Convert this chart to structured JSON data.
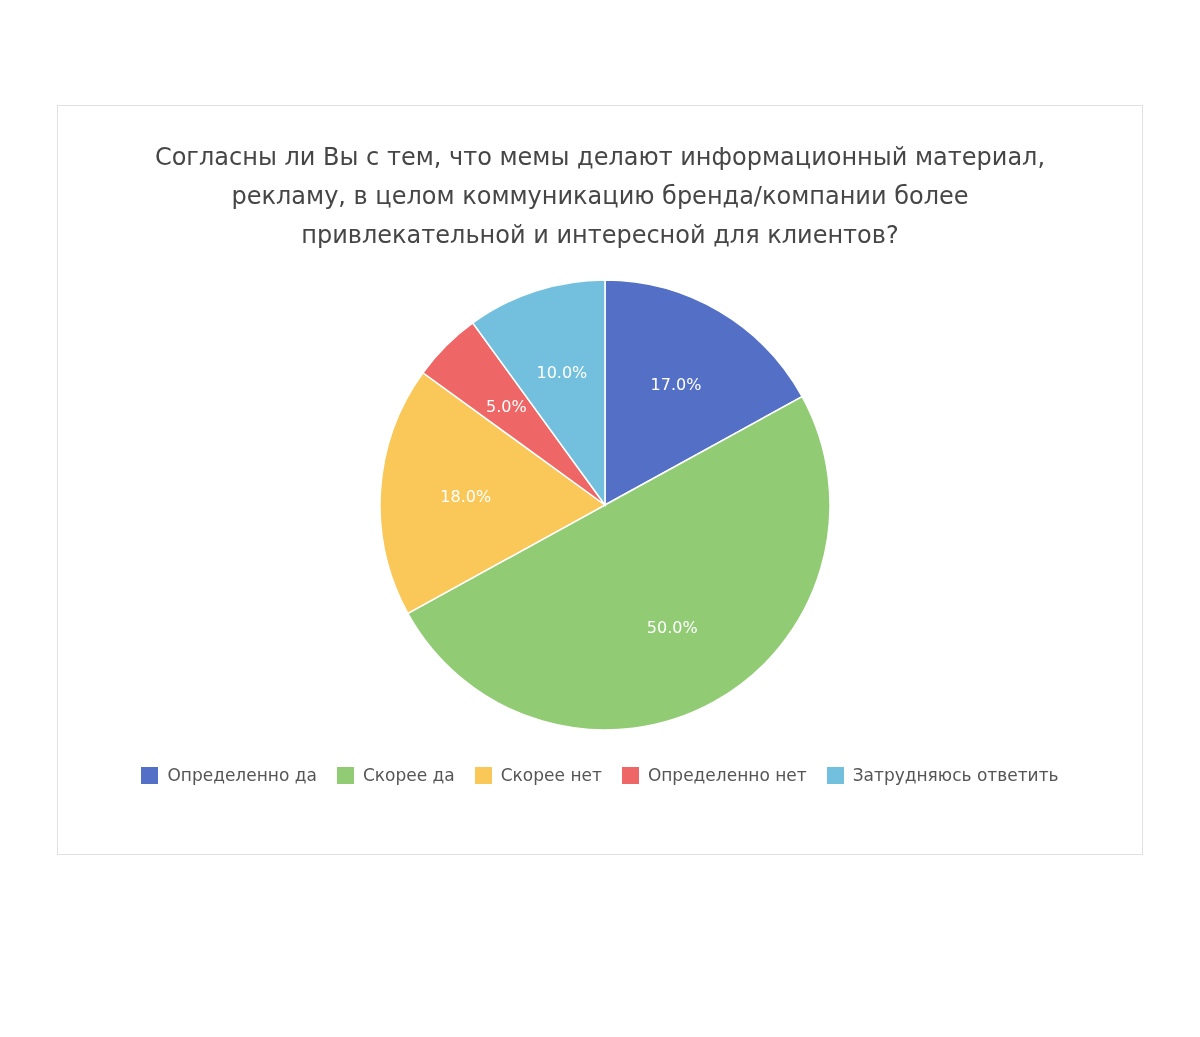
{
  "chart_data": {
    "type": "pie",
    "title": "Согласны ли Вы с тем, что мемы делают информационный материал, рекламу, в целом коммуникацию бренда/компании более привлекательной и интересной для клиентов?",
    "categories": [
      "Определенно да",
      "Скорее да",
      "Скорее нет",
      "Определенно нет",
      "Затрудняюсь ответить"
    ],
    "values": [
      17,
      50,
      18,
      5,
      10
    ],
    "colors": [
      "#5470c6",
      "#91cc75",
      "#fac858",
      "#ee6666",
      "#73c0de"
    ],
    "value_labels": [
      "17.0%",
      "50.0%",
      "18.0%",
      "5.0%",
      "10.0%"
    ],
    "legend": "bottom"
  }
}
